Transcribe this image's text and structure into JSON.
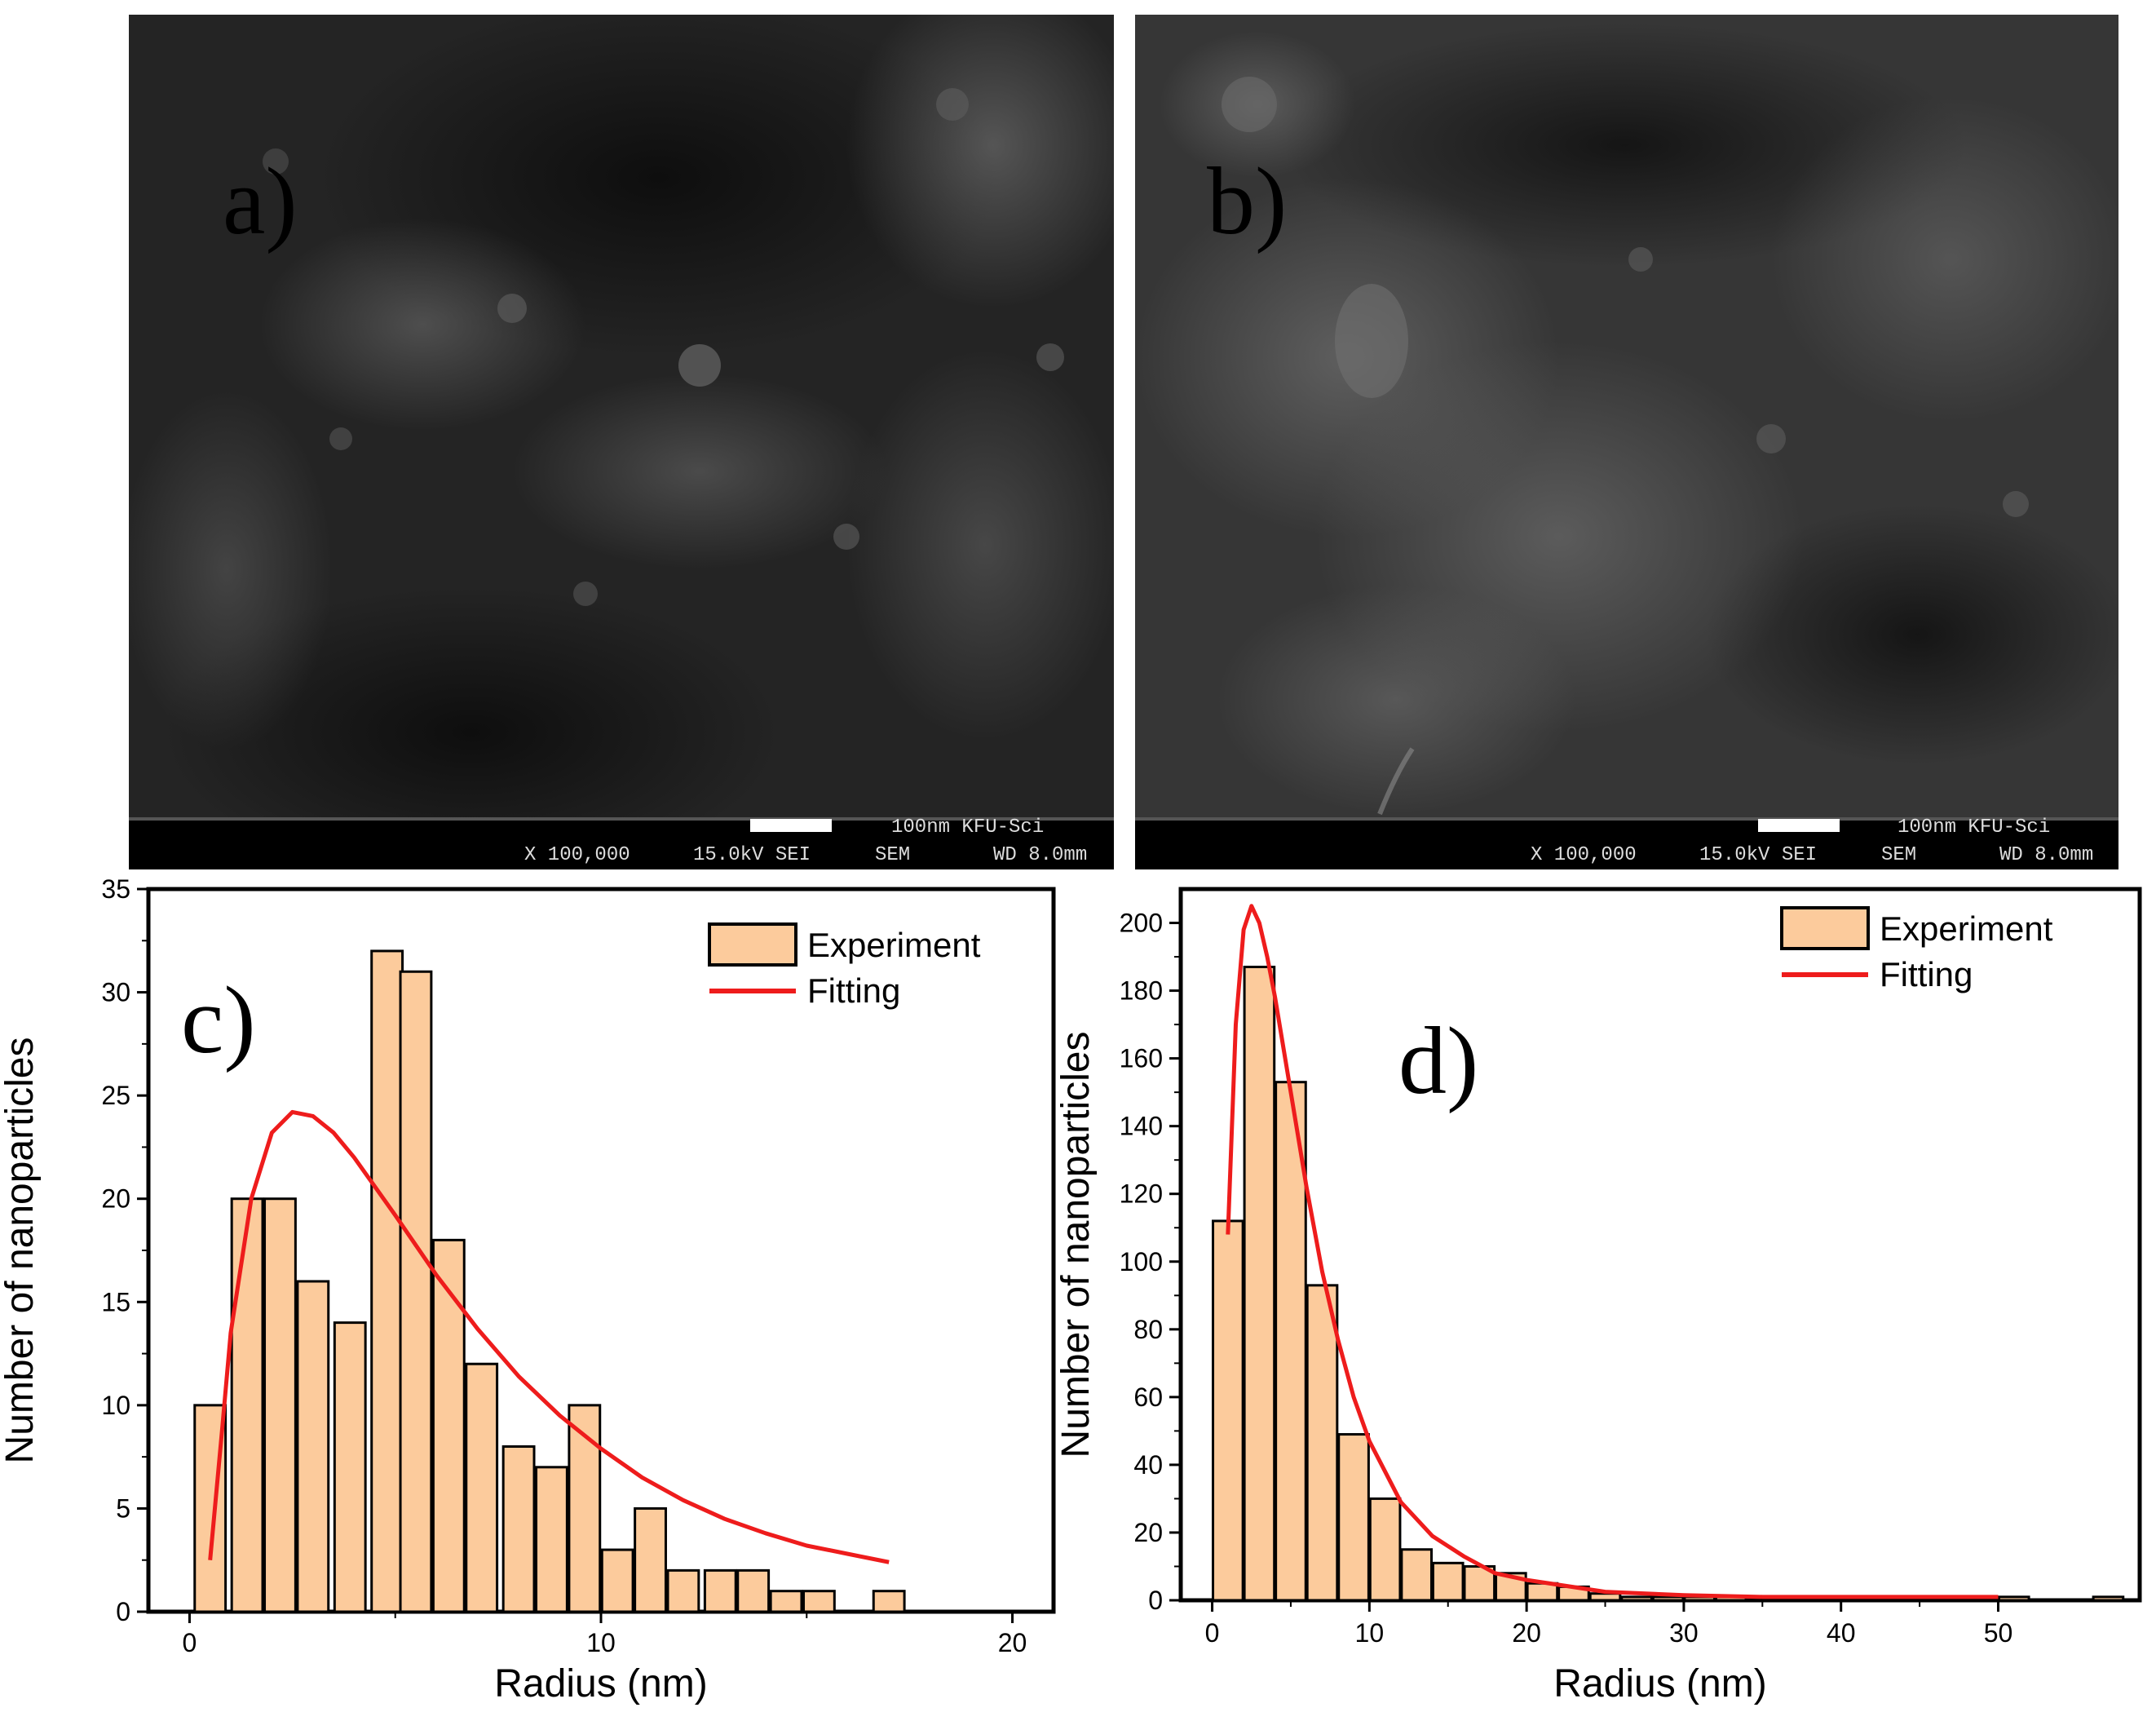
{
  "sem_images": [
    {
      "label": "a)",
      "scale_text": "100nm KFU-Sci",
      "info_magnification": "X 100,000",
      "info_voltage": "15.0kV SEI",
      "info_mode": "SEM",
      "info_wd": "WD 8.0mm"
    },
    {
      "label": "b)",
      "scale_text": "100nm KFU-Sci",
      "info_magnification": "X 100,000",
      "info_voltage": "15.0kV SEI",
      "info_mode": "SEM",
      "info_wd": "WD 8.0mm"
    }
  ],
  "colors": {
    "bar_fill": "#FCCB9C",
    "bar_stroke": "#000000",
    "fit_line": "#EE1C1C",
    "sem_background": "#1f1f1f"
  },
  "chart_data": [
    {
      "panel_label": "c)",
      "type": "bar",
      "xlabel": "Radius (nm)",
      "ylabel": "Number of nanoparticles",
      "xlim": [
        -1,
        21
      ],
      "ylim": [
        0,
        35
      ],
      "xticks": [
        "0",
        "10",
        "20"
      ],
      "yticks": [
        "0",
        "5",
        "10",
        "15",
        "20",
        "25",
        "30",
        "35"
      ],
      "grid": false,
      "legend_position": "top-right",
      "series": [
        {
          "name": "Experiment",
          "type": "bar",
          "bin_width": 0.75,
          "x": [
            0.5,
            1.4,
            2.2,
            3.0,
            3.9,
            4.8,
            5.5,
            6.3,
            7.1,
            8.0,
            8.8,
            9.6,
            10.4,
            11.2,
            12.0,
            12.9,
            13.7,
            14.5,
            15.3,
            17.0
          ],
          "values": [
            10,
            20,
            20,
            16,
            14,
            32,
            31,
            18,
            12,
            8,
            7,
            10,
            3,
            5,
            2,
            2,
            2,
            1,
            1,
            1
          ]
        },
        {
          "name": "Fitting",
          "type": "line",
          "x": [
            0.5,
            0.8,
            1.0,
            1.5,
            2.0,
            2.5,
            3.0,
            3.5,
            4.0,
            5.0,
            6.0,
            7.0,
            8.0,
            9.0,
            10.0,
            11.0,
            12.0,
            13.0,
            14.0,
            15.0,
            16.0,
            17.0
          ],
          "values": [
            2.5,
            9.0,
            13.5,
            20.0,
            23.2,
            24.2,
            24.0,
            23.2,
            22.0,
            19.2,
            16.3,
            13.7,
            11.4,
            9.5,
            7.9,
            6.5,
            5.4,
            4.5,
            3.8,
            3.2,
            2.8,
            2.4
          ]
        }
      ]
    },
    {
      "panel_label": "d)",
      "type": "bar",
      "xlabel": "Radius (nm)",
      "ylabel": "Number of nanoparticles",
      "xlim": [
        -2,
        59
      ],
      "ylim": [
        0,
        210
      ],
      "xticks": [
        "0",
        "10",
        "20",
        "30",
        "40",
        "50"
      ],
      "yticks": [
        "0",
        "20",
        "40",
        "60",
        "80",
        "100",
        "120",
        "140",
        "160",
        "180",
        "200"
      ],
      "grid": false,
      "legend_position": "top-right",
      "series": [
        {
          "name": "Experiment",
          "type": "bar",
          "bin_width": 1.9,
          "x": [
            1.0,
            3.0,
            5.0,
            7.0,
            9.0,
            11.0,
            13.0,
            15.0,
            17.0,
            19.0,
            21.0,
            23.0,
            25.0,
            27.0,
            29.0,
            31.0,
            33.0,
            35.0,
            37.0,
            39.0,
            41.0,
            43.0,
            45.0,
            47.0,
            49.0,
            51.0,
            53.0,
            55.0,
            57.0
          ],
          "values": [
            112,
            187,
            153,
            93,
            49,
            30,
            15,
            11,
            10,
            8,
            5,
            4,
            2,
            1,
            1,
            1,
            1,
            0,
            0,
            0,
            0,
            0,
            0,
            0,
            0,
            1,
            0,
            0,
            1
          ]
        },
        {
          "name": "Fitting",
          "type": "line",
          "x": [
            1.0,
            1.5,
            2.0,
            2.5,
            3.0,
            3.5,
            4.0,
            5.0,
            6.0,
            7.0,
            8.0,
            9.0,
            10.0,
            12.0,
            14.0,
            16.0,
            18.0,
            20.0,
            25.0,
            30.0,
            35.0,
            40.0,
            45.0,
            50.0
          ],
          "values": [
            108,
            170,
            198,
            205,
            200,
            190,
            178,
            150,
            122,
            97,
            77,
            60,
            47,
            29,
            19,
            13,
            8,
            6,
            2.5,
            1.5,
            1,
            1,
            1,
            1
          ]
        }
      ]
    }
  ]
}
